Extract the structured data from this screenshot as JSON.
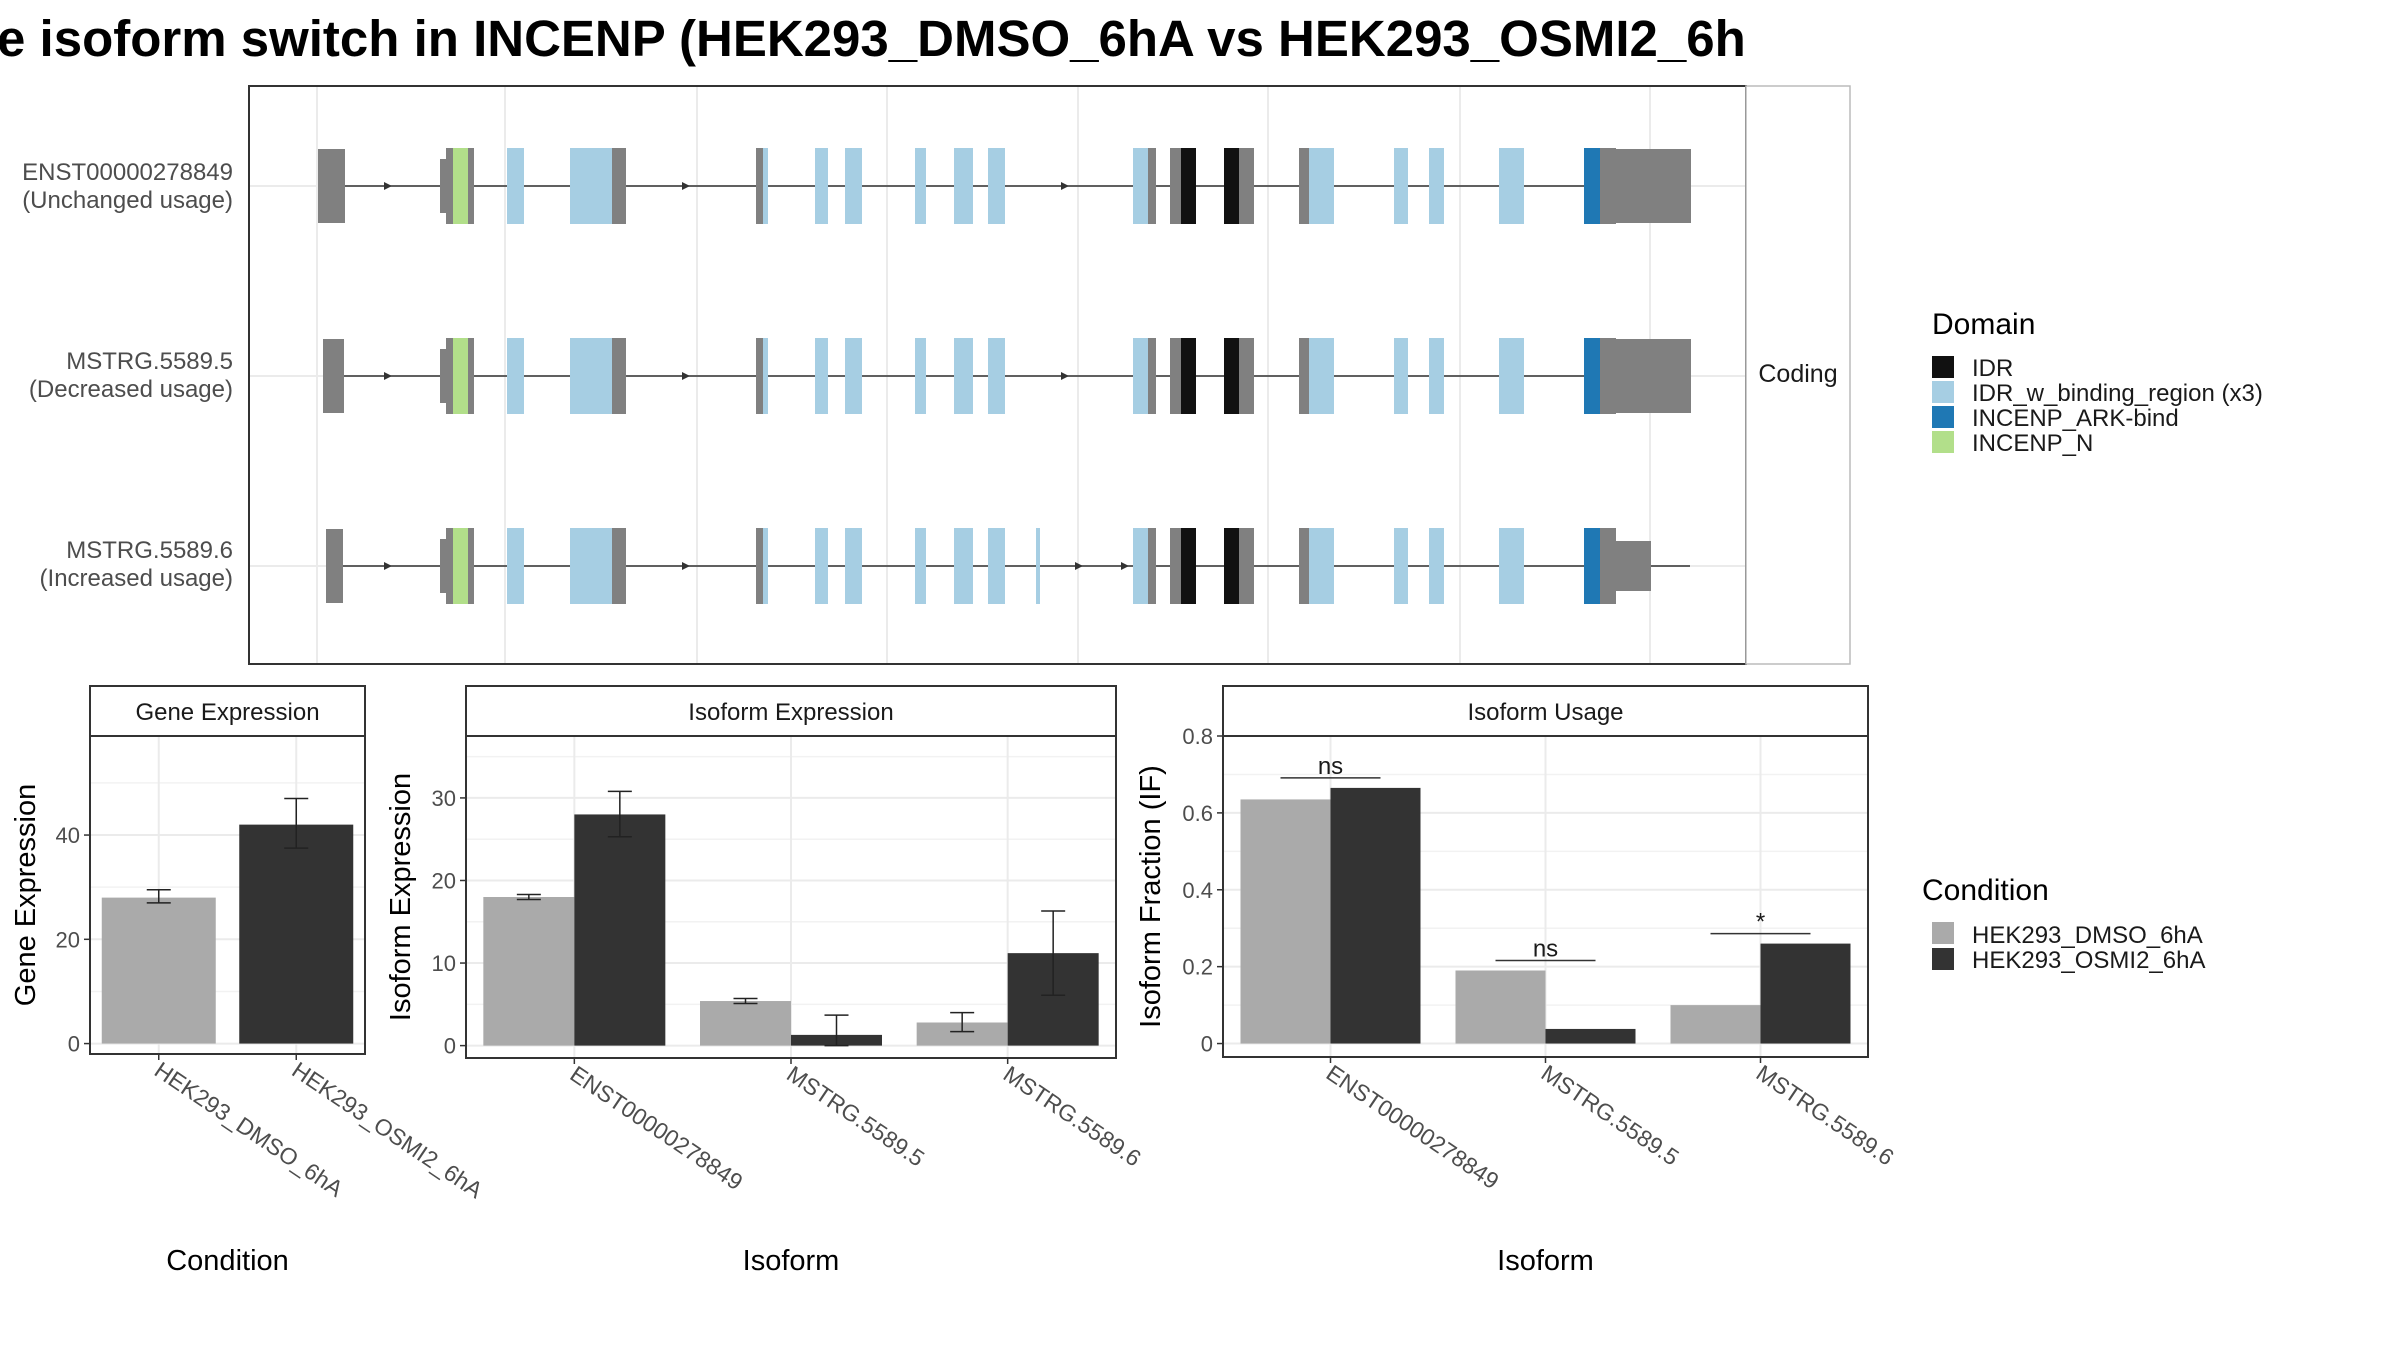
{
  "title": "e isoform switch in INCENP (HEK293_DMSO_6hA vs HEK293_OSMI2_6h",
  "colors": {
    "IDR": "#111111",
    "IDR_w_binding_region (x3)": "#a6cee3",
    "INCENP_ARK-bind": "#1f78b4",
    "INCENP_N": "#b2df8a",
    "noncoding": "#808080",
    "HEK293_DMSO_6hA": "#aaaaaa",
    "HEK293_OSMI2_6hA": "#333333"
  },
  "transcripts": {
    "strip_label": "Coding",
    "items": [
      {
        "id": "ENST00000278849",
        "usage": "(Unchanged usage)"
      },
      {
        "id": "MSTRG.5589.5",
        "usage": "(Decreased usage)"
      },
      {
        "id": "MSTRG.5589.6",
        "usage": "(Increased usage)"
      }
    ]
  },
  "legends": {
    "domain": {
      "title": "Domain",
      "entries": [
        "IDR",
        "IDR_w_binding_region (x3)",
        "INCENP_ARK-bind",
        "INCENP_N"
      ]
    },
    "condition": {
      "title": "Condition",
      "entries": [
        "HEK293_DMSO_6hA",
        "HEK293_OSMI2_6hA"
      ]
    }
  },
  "chart_data": [
    {
      "type": "bar",
      "title": "Gene Expression",
      "xlabel": "Condition",
      "ylabel": "Gene Expression",
      "ylim": [
        -2,
        59
      ],
      "yticks": [
        0,
        20,
        40
      ],
      "categories": [
        "HEK293_DMSO_6hA",
        "HEK293_OSMI2_6hA"
      ],
      "values": [
        28,
        42
      ],
      "errors": [
        [
          27,
          29.5
        ],
        [
          37.5,
          47
        ]
      ],
      "grid": true
    },
    {
      "type": "bar",
      "title": "Isoform Expression",
      "xlabel": "Isoform",
      "ylabel": "Isoform Expression",
      "ylim": [
        -1.5,
        37.5
      ],
      "yticks": [
        0,
        10,
        20,
        30
      ],
      "categories": [
        "ENST00000278849",
        "MSTRG.5589.5",
        "MSTRG.5589.6"
      ],
      "series": [
        {
          "name": "HEK293_DMSO_6hA",
          "values": [
            18,
            5.4,
            2.8
          ],
          "errors": [
            [
              17.7,
              18.3
            ],
            [
              5.1,
              5.7
            ],
            [
              1.7,
              4
            ]
          ]
        },
        {
          "name": "HEK293_OSMI2_6hA",
          "values": [
            28,
            1.3,
            11.2
          ],
          "errors": [
            [
              25.3,
              30.8
            ],
            [
              0,
              3.7
            ],
            [
              6.1,
              16.3
            ]
          ]
        }
      ],
      "grid": true
    },
    {
      "type": "bar",
      "title": "Isoform Usage",
      "xlabel": "Isoform",
      "ylabel": "Isoform Fraction (IF)",
      "ylim": [
        -0.035,
        0.8
      ],
      "yticks": [
        0.0,
        0.2,
        0.4,
        0.6,
        0.8
      ],
      "categories": [
        "ENST00000278849",
        "MSTRG.5589.5",
        "MSTRG.5589.6"
      ],
      "series": [
        {
          "name": "HEK293_DMSO_6hA",
          "values": [
            0.635,
            0.19,
            0.1
          ]
        },
        {
          "name": "HEK293_OSMI2_6hA",
          "values": [
            0.665,
            0.038,
            0.26
          ]
        }
      ],
      "annotations": [
        "ns",
        "ns",
        "*"
      ],
      "grid": true
    }
  ]
}
